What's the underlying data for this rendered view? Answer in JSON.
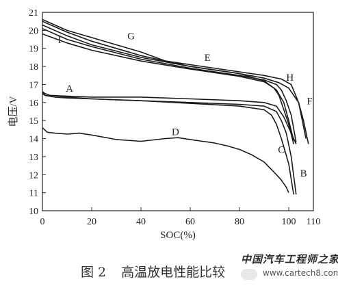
{
  "chart_data": {
    "type": "line",
    "xlabel": "SOC(%)",
    "ylabel": "电压/V",
    "xlim": [
      0,
      110
    ],
    "ylim": [
      10,
      21
    ],
    "xticks": [
      0,
      20,
      40,
      60,
      80,
      100,
      110
    ],
    "yticks": [
      10,
      11,
      12,
      13,
      14,
      15,
      16,
      17,
      18,
      19,
      20,
      21
    ],
    "grid": false,
    "series": [
      {
        "name": "A",
        "x": [
          0,
          1,
          3,
          10,
          20,
          40,
          60,
          80,
          90,
          95,
          98,
          101,
          103
        ],
        "y": [
          16.6,
          16.5,
          16.4,
          16.35,
          16.3,
          16.3,
          16.2,
          16.1,
          16.0,
          15.8,
          15.2,
          14.3,
          13.7
        ]
      },
      {
        "name": "B",
        "x": [
          0,
          1,
          5,
          10,
          20,
          40,
          60,
          80,
          90,
          95,
          97,
          99,
          101,
          103
        ],
        "y": [
          16.5,
          16.4,
          16.3,
          16.3,
          16.2,
          16.1,
          16.0,
          15.9,
          15.8,
          15.5,
          15.0,
          14.3,
          13.0,
          10.9
        ]
      },
      {
        "name": "C",
        "x": [
          0,
          1,
          5,
          10,
          20,
          40,
          60,
          80,
          90,
          93,
          95,
          97,
          100,
          102
        ],
        "y": [
          16.6,
          16.4,
          16.3,
          16.25,
          16.2,
          16.1,
          15.95,
          15.8,
          15.6,
          15.3,
          14.8,
          14.0,
          12.6,
          10.9
        ]
      },
      {
        "name": "D",
        "x": [
          0,
          2,
          5,
          10,
          15,
          20,
          30,
          40,
          50,
          55,
          60,
          65,
          70,
          75,
          80,
          85,
          90,
          95,
          97,
          99,
          100
        ],
        "y": [
          14.6,
          14.35,
          14.3,
          14.25,
          14.3,
          14.2,
          13.95,
          13.85,
          14.0,
          14.05,
          13.95,
          13.85,
          13.75,
          13.6,
          13.4,
          13.1,
          12.7,
          12.0,
          11.7,
          11.3,
          11.0
        ]
      },
      {
        "name": "E",
        "x": [
          0,
          10,
          20,
          40,
          60,
          80,
          90,
          95,
          98,
          100,
          102
        ],
        "y": [
          20.5,
          19.9,
          19.4,
          18.6,
          18.0,
          17.6,
          17.2,
          16.7,
          16.0,
          15.0,
          13.9
        ]
      },
      {
        "name": "F",
        "x": [
          0,
          10,
          20,
          40,
          60,
          80,
          90,
          96,
          100,
          104,
          106,
          108
        ],
        "y": [
          20.3,
          19.7,
          19.2,
          18.5,
          18.0,
          17.6,
          17.35,
          17.1,
          16.8,
          16.0,
          15.0,
          13.7
        ]
      },
      {
        "name": "G",
        "x": [
          0,
          5,
          10,
          20,
          30,
          40,
          50,
          55,
          60,
          80,
          90,
          97,
          101,
          104,
          107
        ],
        "y": [
          20.6,
          20.3,
          20.0,
          19.6,
          19.2,
          18.8,
          18.3,
          18.2,
          18.1,
          17.7,
          17.5,
          17.3,
          17.0,
          16.0,
          14.0
        ]
      },
      {
        "name": "H",
        "x": [
          0,
          10,
          20,
          40,
          60,
          80,
          90,
          95,
          97,
          99,
          101,
          103
        ],
        "y": [
          20.1,
          19.5,
          19.1,
          18.4,
          17.9,
          17.5,
          17.25,
          17.0,
          16.7,
          16.1,
          15.3,
          13.8
        ]
      },
      {
        "name": "I",
        "x": [
          0,
          10,
          20,
          40,
          60,
          80,
          90,
          94,
          96,
          98,
          100,
          102
        ],
        "y": [
          19.8,
          19.3,
          18.9,
          18.3,
          17.85,
          17.45,
          17.15,
          16.8,
          16.4,
          15.6,
          14.8,
          13.7
        ]
      }
    ],
    "labels": [
      {
        "text": "A",
        "x": 11,
        "y": 16.6
      },
      {
        "text": "B",
        "x": 106,
        "y": 11.9
      },
      {
        "text": "C",
        "x": 97,
        "y": 13.2
      },
      {
        "text": "D",
        "x": 54,
        "y": 14.2
      },
      {
        "text": "E",
        "x": 67,
        "y": 18.3
      },
      {
        "text": "F",
        "x": 108.5,
        "y": 15.9
      },
      {
        "text": "G",
        "x": 36,
        "y": 19.5
      },
      {
        "text": "H",
        "x": 100.5,
        "y": 17.2
      },
      {
        "text": "I",
        "x": 7,
        "y": 19.3
      }
    ]
  },
  "caption": {
    "figure_number": "图 2",
    "title": "高温放电性能比较"
  },
  "watermark": {
    "logo_text": "中国汽车工程师之家",
    "url": "www.cartech8.com"
  }
}
